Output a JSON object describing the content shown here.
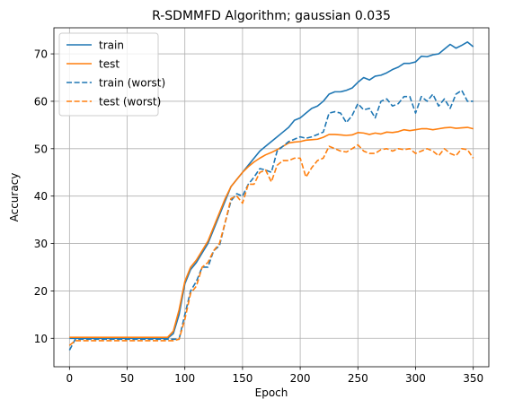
{
  "chart_data": {
    "type": "line",
    "title": "R-SDMMFD Algorithm; gaussian 0.035",
    "xlabel": "Epoch",
    "ylabel": "Accuracy",
    "xlim": [
      -13.5,
      363.5
    ],
    "ylim": [
      4,
      75.5
    ],
    "xticks": [
      0,
      50,
      100,
      150,
      200,
      250,
      300,
      350
    ],
    "yticks": [
      10,
      20,
      30,
      40,
      50,
      60,
      70
    ],
    "grid": true,
    "legend_position": "top-left",
    "series": [
      {
        "name": "train",
        "color": "#1f77b4",
        "dash": "solid",
        "x": [
          0,
          5,
          10,
          15,
          20,
          25,
          30,
          35,
          40,
          45,
          50,
          55,
          60,
          65,
          70,
          75,
          80,
          85,
          90,
          95,
          100,
          105,
          110,
          115,
          120,
          125,
          130,
          135,
          140,
          145,
          150,
          155,
          160,
          165,
          170,
          175,
          180,
          185,
          190,
          195,
          200,
          205,
          210,
          215,
          220,
          225,
          230,
          235,
          240,
          245,
          250,
          255,
          260,
          265,
          270,
          275,
          280,
          285,
          290,
          295,
          300,
          305,
          310,
          315,
          320,
          325,
          330,
          335,
          340,
          345,
          350
        ],
        "y": [
          10.0,
          10.0,
          10.0,
          10.0,
          10.0,
          10.0,
          10.0,
          10.0,
          10.0,
          10.0,
          10.0,
          10.0,
          10.0,
          10.0,
          10.0,
          10.0,
          10.0,
          10.0,
          11.0,
          15.0,
          21.5,
          24.5,
          26.0,
          28.0,
          30.0,
          33.0,
          36.0,
          39.0,
          42.0,
          43.5,
          45.0,
          46.5,
          48.0,
          49.5,
          50.5,
          51.5,
          52.5,
          53.5,
          54.5,
          56.0,
          56.5,
          57.5,
          58.5,
          59.0,
          60.0,
          61.5,
          62.0,
          62.0,
          62.3,
          62.8,
          64.0,
          65.0,
          64.5,
          65.3,
          65.5,
          66.0,
          66.7,
          67.2,
          68.0,
          68.0,
          68.3,
          69.5,
          69.4,
          69.8,
          70.0,
          71.0,
          72.0,
          71.2,
          71.8,
          72.5,
          71.5
        ]
      },
      {
        "name": "test",
        "color": "#ff7f0e",
        "dash": "solid",
        "x": [
          0,
          5,
          10,
          15,
          20,
          25,
          30,
          35,
          40,
          45,
          50,
          55,
          60,
          65,
          70,
          75,
          80,
          85,
          90,
          95,
          100,
          105,
          110,
          115,
          120,
          125,
          130,
          135,
          140,
          145,
          150,
          155,
          160,
          165,
          170,
          175,
          180,
          185,
          190,
          195,
          200,
          205,
          210,
          215,
          220,
          225,
          230,
          235,
          240,
          245,
          250,
          255,
          260,
          265,
          270,
          275,
          280,
          285,
          290,
          295,
          300,
          305,
          310,
          315,
          320,
          325,
          330,
          335,
          340,
          345,
          350
        ],
        "y": [
          10.2,
          10.2,
          10.2,
          10.2,
          10.2,
          10.2,
          10.2,
          10.2,
          10.2,
          10.2,
          10.2,
          10.2,
          10.2,
          10.2,
          10.2,
          10.2,
          10.2,
          10.2,
          11.5,
          16.0,
          22.0,
          25.0,
          26.5,
          28.5,
          30.5,
          33.5,
          36.5,
          39.5,
          42.0,
          43.5,
          45.0,
          46.2,
          47.2,
          48.0,
          48.7,
          49.2,
          49.8,
          50.5,
          51.2,
          51.4,
          51.5,
          51.8,
          51.9,
          52.0,
          52.4,
          53.0,
          53.0,
          52.9,
          52.8,
          52.9,
          53.4,
          53.3,
          53.0,
          53.3,
          53.1,
          53.5,
          53.4,
          53.6,
          54.0,
          53.8,
          54.0,
          54.2,
          54.2,
          54.0,
          54.2,
          54.4,
          54.5,
          54.3,
          54.4,
          54.5,
          54.2
        ]
      },
      {
        "name": "train (worst)",
        "color": "#1f77b4",
        "dash": "dashed",
        "x": [
          0,
          5,
          10,
          15,
          20,
          25,
          30,
          35,
          40,
          45,
          50,
          55,
          60,
          65,
          70,
          75,
          80,
          85,
          90,
          95,
          100,
          105,
          110,
          115,
          120,
          125,
          130,
          135,
          140,
          145,
          150,
          155,
          160,
          165,
          170,
          175,
          180,
          185,
          190,
          195,
          200,
          205,
          210,
          215,
          220,
          225,
          230,
          235,
          240,
          245,
          250,
          255,
          260,
          265,
          270,
          275,
          280,
          285,
          290,
          295,
          300,
          305,
          310,
          315,
          320,
          325,
          330,
          335,
          340,
          345,
          350
        ],
        "y": [
          7.5,
          9.8,
          9.8,
          9.8,
          9.8,
          9.8,
          9.8,
          9.8,
          9.8,
          9.8,
          9.8,
          9.8,
          9.8,
          9.8,
          9.8,
          9.8,
          9.8,
          9.8,
          9.8,
          9.8,
          15.0,
          20.0,
          22.0,
          25.0,
          25.0,
          28.5,
          29.5,
          34.5,
          39.0,
          40.5,
          40.0,
          42.5,
          44.0,
          45.8,
          45.5,
          45.0,
          49.5,
          50.5,
          51.5,
          52.0,
          52.5,
          52.2,
          52.5,
          53.0,
          53.5,
          57.5,
          57.8,
          57.5,
          55.5,
          57.0,
          59.5,
          58.2,
          58.5,
          56.5,
          60.0,
          60.5,
          59.0,
          59.5,
          61.0,
          61.0,
          57.5,
          61.0,
          60.0,
          61.5,
          59.0,
          60.5,
          58.5,
          61.5,
          62.3,
          60.0,
          60.0
        ]
      },
      {
        "name": "test (worst)",
        "color": "#ff7f0e",
        "dash": "dashed",
        "x": [
          0,
          5,
          10,
          15,
          20,
          25,
          30,
          35,
          40,
          45,
          50,
          55,
          60,
          65,
          70,
          75,
          80,
          85,
          90,
          95,
          100,
          105,
          110,
          115,
          120,
          125,
          130,
          135,
          140,
          145,
          150,
          155,
          160,
          165,
          170,
          175,
          180,
          185,
          190,
          195,
          200,
          205,
          210,
          215,
          220,
          225,
          230,
          235,
          240,
          245,
          250,
          255,
          260,
          265,
          270,
          275,
          280,
          285,
          290,
          295,
          300,
          305,
          310,
          315,
          320,
          325,
          330,
          335,
          340,
          345,
          350
        ],
        "y": [
          8.5,
          9.5,
          9.5,
          9.5,
          9.5,
          9.5,
          9.5,
          9.5,
          9.5,
          9.5,
          9.5,
          9.5,
          9.5,
          9.5,
          9.5,
          9.5,
          9.5,
          9.5,
          9.5,
          9.8,
          14.0,
          19.5,
          21.0,
          25.0,
          26.0,
          28.5,
          30.0,
          34.5,
          39.5,
          40.0,
          38.5,
          42.5,
          42.5,
          45.0,
          45.5,
          43.0,
          46.5,
          47.5,
          47.5,
          48.0,
          48.0,
          44.0,
          46.0,
          47.5,
          48.0,
          50.5,
          50.0,
          49.5,
          49.3,
          50.0,
          50.8,
          49.5,
          49.0,
          49.0,
          49.8,
          50.0,
          49.5,
          50.0,
          49.8,
          50.0,
          49.0,
          49.5,
          50.0,
          49.5,
          48.5,
          50.0,
          49.0,
          48.5,
          50.0,
          49.8,
          48.0
        ]
      }
    ]
  }
}
